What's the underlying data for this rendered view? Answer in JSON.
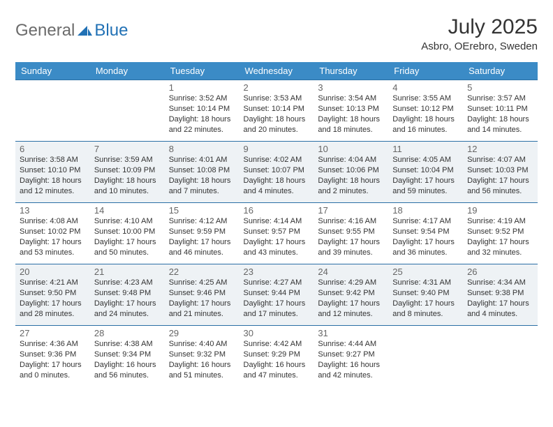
{
  "brand": {
    "word1": "General",
    "word2": "Blue"
  },
  "title": "July 2025",
  "location": "Asbro, OErebro, Sweden",
  "colors": {
    "header_bg": "#3b8bc6",
    "header_text": "#ffffff",
    "border": "#2a6fa5",
    "alt_row_bg": "#eef2f5",
    "text": "#333333",
    "muted": "#666666",
    "logo_gray": "#6b6b6b",
    "logo_blue": "#2171b5"
  },
  "day_headers": [
    "Sunday",
    "Monday",
    "Tuesday",
    "Wednesday",
    "Thursday",
    "Friday",
    "Saturday"
  ],
  "weeks": [
    {
      "alt": false,
      "days": [
        null,
        null,
        {
          "n": "1",
          "sunrise": "Sunrise: 3:52 AM",
          "sunset": "Sunset: 10:14 PM",
          "dl1": "Daylight: 18 hours",
          "dl2": "and 22 minutes."
        },
        {
          "n": "2",
          "sunrise": "Sunrise: 3:53 AM",
          "sunset": "Sunset: 10:14 PM",
          "dl1": "Daylight: 18 hours",
          "dl2": "and 20 minutes."
        },
        {
          "n": "3",
          "sunrise": "Sunrise: 3:54 AM",
          "sunset": "Sunset: 10:13 PM",
          "dl1": "Daylight: 18 hours",
          "dl2": "and 18 minutes."
        },
        {
          "n": "4",
          "sunrise": "Sunrise: 3:55 AM",
          "sunset": "Sunset: 10:12 PM",
          "dl1": "Daylight: 18 hours",
          "dl2": "and 16 minutes."
        },
        {
          "n": "5",
          "sunrise": "Sunrise: 3:57 AM",
          "sunset": "Sunset: 10:11 PM",
          "dl1": "Daylight: 18 hours",
          "dl2": "and 14 minutes."
        }
      ]
    },
    {
      "alt": true,
      "days": [
        {
          "n": "6",
          "sunrise": "Sunrise: 3:58 AM",
          "sunset": "Sunset: 10:10 PM",
          "dl1": "Daylight: 18 hours",
          "dl2": "and 12 minutes."
        },
        {
          "n": "7",
          "sunrise": "Sunrise: 3:59 AM",
          "sunset": "Sunset: 10:09 PM",
          "dl1": "Daylight: 18 hours",
          "dl2": "and 10 minutes."
        },
        {
          "n": "8",
          "sunrise": "Sunrise: 4:01 AM",
          "sunset": "Sunset: 10:08 PM",
          "dl1": "Daylight: 18 hours",
          "dl2": "and 7 minutes."
        },
        {
          "n": "9",
          "sunrise": "Sunrise: 4:02 AM",
          "sunset": "Sunset: 10:07 PM",
          "dl1": "Daylight: 18 hours",
          "dl2": "and 4 minutes."
        },
        {
          "n": "10",
          "sunrise": "Sunrise: 4:04 AM",
          "sunset": "Sunset: 10:06 PM",
          "dl1": "Daylight: 18 hours",
          "dl2": "and 2 minutes."
        },
        {
          "n": "11",
          "sunrise": "Sunrise: 4:05 AM",
          "sunset": "Sunset: 10:04 PM",
          "dl1": "Daylight: 17 hours",
          "dl2": "and 59 minutes."
        },
        {
          "n": "12",
          "sunrise": "Sunrise: 4:07 AM",
          "sunset": "Sunset: 10:03 PM",
          "dl1": "Daylight: 17 hours",
          "dl2": "and 56 minutes."
        }
      ]
    },
    {
      "alt": false,
      "days": [
        {
          "n": "13",
          "sunrise": "Sunrise: 4:08 AM",
          "sunset": "Sunset: 10:02 PM",
          "dl1": "Daylight: 17 hours",
          "dl2": "and 53 minutes."
        },
        {
          "n": "14",
          "sunrise": "Sunrise: 4:10 AM",
          "sunset": "Sunset: 10:00 PM",
          "dl1": "Daylight: 17 hours",
          "dl2": "and 50 minutes."
        },
        {
          "n": "15",
          "sunrise": "Sunrise: 4:12 AM",
          "sunset": "Sunset: 9:59 PM",
          "dl1": "Daylight: 17 hours",
          "dl2": "and 46 minutes."
        },
        {
          "n": "16",
          "sunrise": "Sunrise: 4:14 AM",
          "sunset": "Sunset: 9:57 PM",
          "dl1": "Daylight: 17 hours",
          "dl2": "and 43 minutes."
        },
        {
          "n": "17",
          "sunrise": "Sunrise: 4:16 AM",
          "sunset": "Sunset: 9:55 PM",
          "dl1": "Daylight: 17 hours",
          "dl2": "and 39 minutes."
        },
        {
          "n": "18",
          "sunrise": "Sunrise: 4:17 AM",
          "sunset": "Sunset: 9:54 PM",
          "dl1": "Daylight: 17 hours",
          "dl2": "and 36 minutes."
        },
        {
          "n": "19",
          "sunrise": "Sunrise: 4:19 AM",
          "sunset": "Sunset: 9:52 PM",
          "dl1": "Daylight: 17 hours",
          "dl2": "and 32 minutes."
        }
      ]
    },
    {
      "alt": true,
      "days": [
        {
          "n": "20",
          "sunrise": "Sunrise: 4:21 AM",
          "sunset": "Sunset: 9:50 PM",
          "dl1": "Daylight: 17 hours",
          "dl2": "and 28 minutes."
        },
        {
          "n": "21",
          "sunrise": "Sunrise: 4:23 AM",
          "sunset": "Sunset: 9:48 PM",
          "dl1": "Daylight: 17 hours",
          "dl2": "and 24 minutes."
        },
        {
          "n": "22",
          "sunrise": "Sunrise: 4:25 AM",
          "sunset": "Sunset: 9:46 PM",
          "dl1": "Daylight: 17 hours",
          "dl2": "and 21 minutes."
        },
        {
          "n": "23",
          "sunrise": "Sunrise: 4:27 AM",
          "sunset": "Sunset: 9:44 PM",
          "dl1": "Daylight: 17 hours",
          "dl2": "and 17 minutes."
        },
        {
          "n": "24",
          "sunrise": "Sunrise: 4:29 AM",
          "sunset": "Sunset: 9:42 PM",
          "dl1": "Daylight: 17 hours",
          "dl2": "and 12 minutes."
        },
        {
          "n": "25",
          "sunrise": "Sunrise: 4:31 AM",
          "sunset": "Sunset: 9:40 PM",
          "dl1": "Daylight: 17 hours",
          "dl2": "and 8 minutes."
        },
        {
          "n": "26",
          "sunrise": "Sunrise: 4:34 AM",
          "sunset": "Sunset: 9:38 PM",
          "dl1": "Daylight: 17 hours",
          "dl2": "and 4 minutes."
        }
      ]
    },
    {
      "alt": false,
      "days": [
        {
          "n": "27",
          "sunrise": "Sunrise: 4:36 AM",
          "sunset": "Sunset: 9:36 PM",
          "dl1": "Daylight: 17 hours",
          "dl2": "and 0 minutes."
        },
        {
          "n": "28",
          "sunrise": "Sunrise: 4:38 AM",
          "sunset": "Sunset: 9:34 PM",
          "dl1": "Daylight: 16 hours",
          "dl2": "and 56 minutes."
        },
        {
          "n": "29",
          "sunrise": "Sunrise: 4:40 AM",
          "sunset": "Sunset: 9:32 PM",
          "dl1": "Daylight: 16 hours",
          "dl2": "and 51 minutes."
        },
        {
          "n": "30",
          "sunrise": "Sunrise: 4:42 AM",
          "sunset": "Sunset: 9:29 PM",
          "dl1": "Daylight: 16 hours",
          "dl2": "and 47 minutes."
        },
        {
          "n": "31",
          "sunrise": "Sunrise: 4:44 AM",
          "sunset": "Sunset: 9:27 PM",
          "dl1": "Daylight: 16 hours",
          "dl2": "and 42 minutes."
        },
        null,
        null
      ]
    }
  ]
}
